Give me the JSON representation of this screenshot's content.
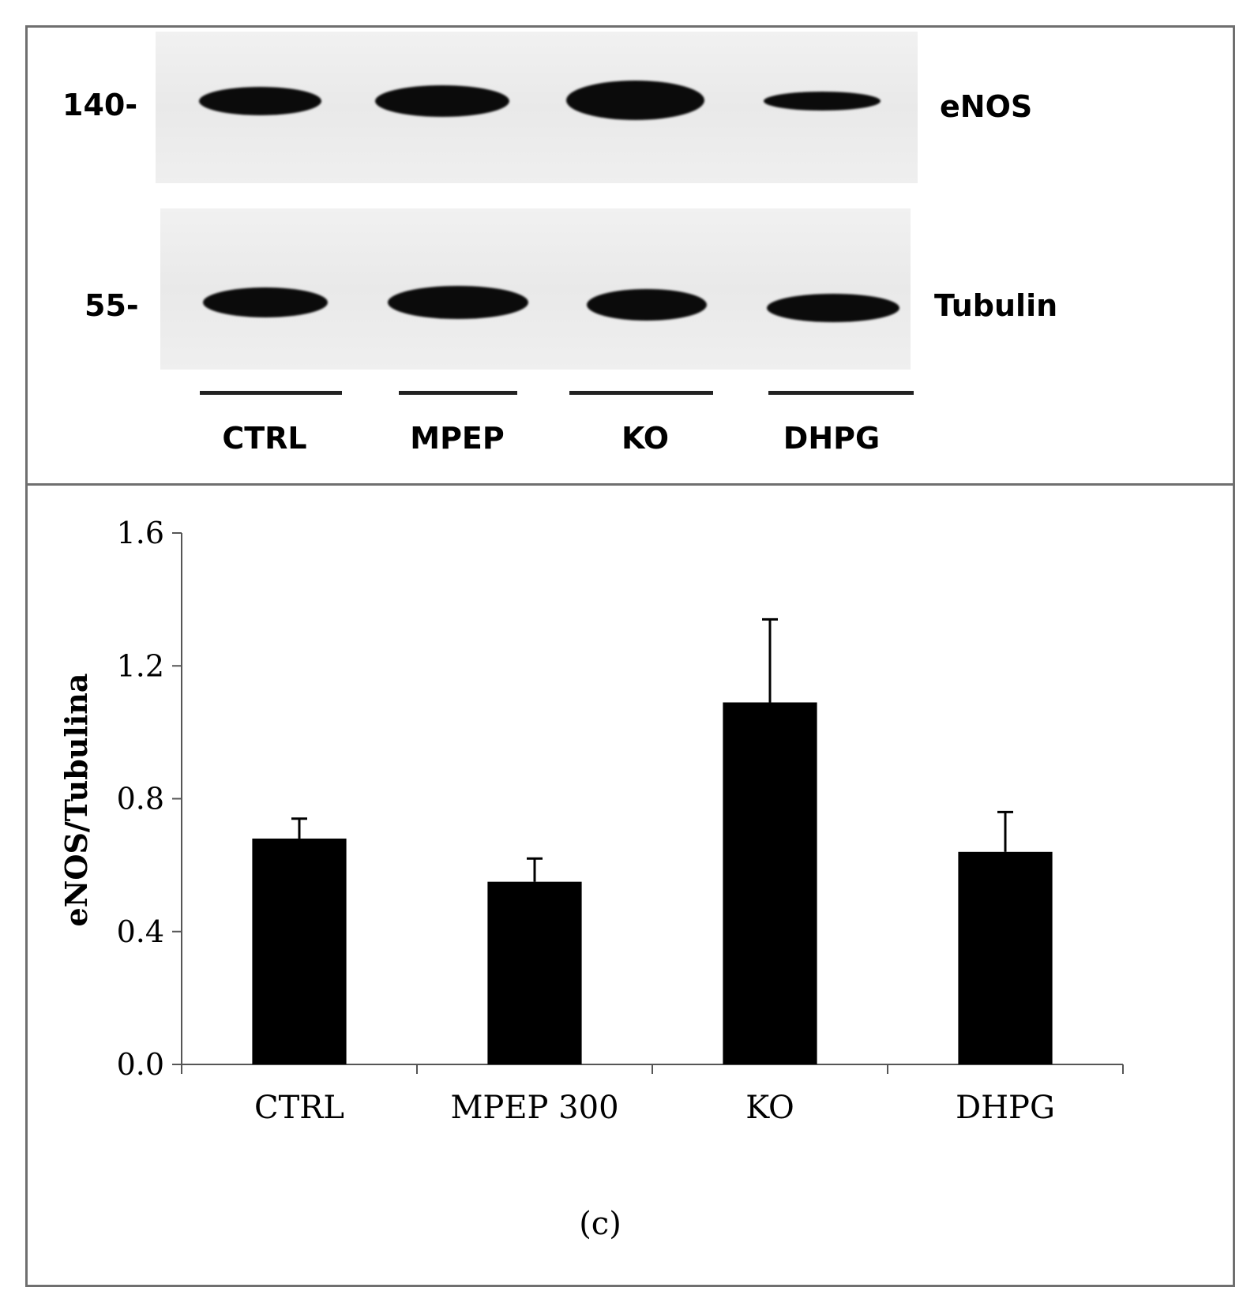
{
  "blot": {
    "markers": [
      {
        "label": "140-"
      },
      {
        "label": "55-"
      }
    ],
    "proteins": [
      {
        "label": "eNOS"
      },
      {
        "label": "Tubulin"
      }
    ],
    "lanes": [
      "CTRL",
      "MPEP",
      "KO",
      "DHPG"
    ]
  },
  "chart_data": {
    "type": "bar",
    "categories": [
      "CTRL",
      "MPEP 300",
      "KO",
      "DHPG"
    ],
    "values": [
      0.68,
      0.55,
      1.09,
      0.64
    ],
    "errors": [
      0.06,
      0.07,
      0.25,
      0.12
    ],
    "ylabel": "eNOS/Tubulina",
    "xlabel": "",
    "ylim": [
      0,
      1.6
    ],
    "yticks": [
      "0.0",
      "0.4",
      "0.8",
      "1.2",
      "1.6"
    ],
    "bar_color": "#000000",
    "grid": false,
    "caption": "(c)"
  }
}
